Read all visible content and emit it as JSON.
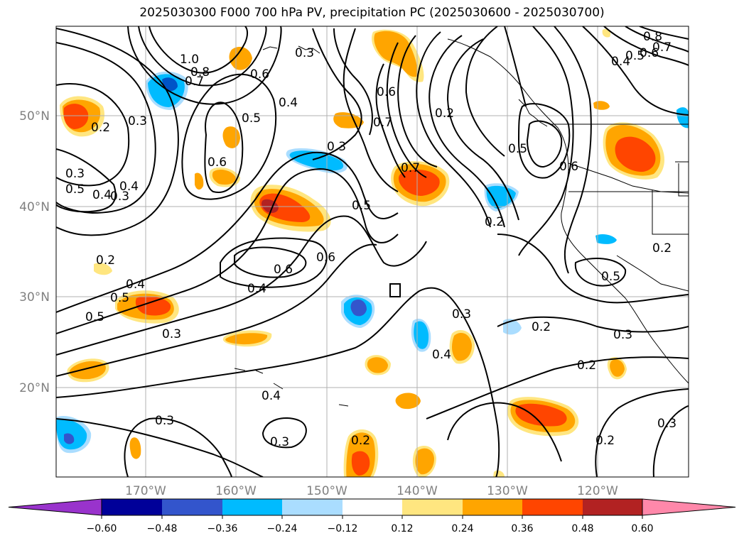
{
  "map": {
    "title": "2025030300 F000 700 hPa PV, precipitation PC (2025030600 - 2025030700)",
    "lon_ticks": [
      "170°W",
      "160°W",
      "150°W",
      "140°W",
      "130°W",
      "120°W"
    ],
    "lat_ticks": [
      "50°N",
      "40°N",
      "30°N",
      "20°N"
    ],
    "contour_labels": [
      "1.0",
      "0.8",
      "0.7",
      "0.3",
      "0.3",
      "0.6",
      "0.5",
      "0.4",
      "0.2",
      "0.3",
      "0.6",
      "0.7",
      "0.2",
      "0.5",
      "0.7",
      "0.6",
      "0.5",
      "0.4",
      "0.3",
      "0.6",
      "0.5",
      "0.4",
      "0.3",
      "0.5",
      "0.6",
      "0.2",
      "0.8",
      "0.7",
      "0.6",
      "0.5",
      "0.4",
      "0.2",
      "0.6",
      "0.4",
      "0.5",
      "0.4",
      "0.3",
      "0.5",
      "0.3",
      "0.4",
      "0.2",
      "0.3",
      "0.2",
      "0.2",
      "0.3",
      "0.2",
      "0.3",
      "0.3",
      "0.2",
      "0.4"
    ]
  },
  "colorbar": {
    "ticks": [
      "−0.60",
      "−0.48",
      "−0.36",
      "−0.24",
      "−0.12",
      "0.12",
      "0.24",
      "0.36",
      "0.48",
      "0.60"
    ],
    "colors": [
      "#9933cc",
      "#000099",
      "#3355cc",
      "#00bbff",
      "#aaddff",
      "#ffffff",
      "#ffe680",
      "#ffa500",
      "#ff4500",
      "#b22222",
      "#ff88aa"
    ]
  }
}
